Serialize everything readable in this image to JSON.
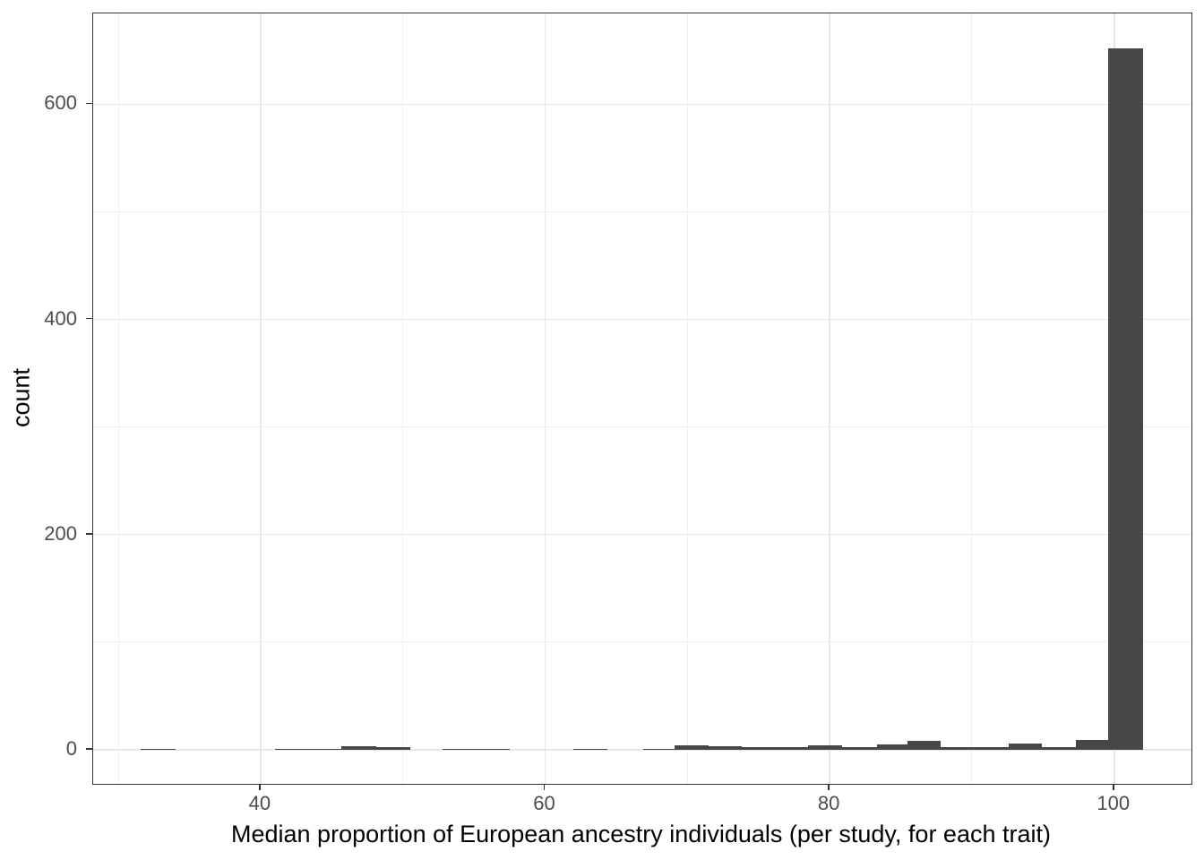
{
  "chart_data": {
    "type": "bar",
    "subtype": "histogram",
    "title": "",
    "xlabel": "Median proportion of European ancestry individuals (per study, for each trait)",
    "ylabel": "count",
    "x_domain": [
      28.2,
      105.4
    ],
    "y_domain": [
      -31.7,
      684.3
    ],
    "x_major_ticks": [
      40,
      60,
      80,
      100
    ],
    "x_minor_gridlines": [
      30,
      50,
      70,
      90
    ],
    "y_major_ticks": [
      0,
      200,
      400,
      600
    ],
    "y_minor_gridlines": [
      100,
      300,
      500
    ],
    "grid": "major+minor",
    "legend_position": "none",
    "bars": [
      {
        "x0": 31.6,
        "x1": 34.0,
        "count": 1
      },
      {
        "x0": 41.0,
        "x1": 43.4,
        "count": 1
      },
      {
        "x0": 43.4,
        "x1": 45.7,
        "count": 1
      },
      {
        "x0": 45.7,
        "x1": 48.1,
        "count": 3
      },
      {
        "x0": 48.1,
        "x1": 50.5,
        "count": 2
      },
      {
        "x0": 52.8,
        "x1": 55.2,
        "count": 1
      },
      {
        "x0": 55.2,
        "x1": 57.5,
        "count": 1
      },
      {
        "x0": 62.0,
        "x1": 64.4,
        "count": 1
      },
      {
        "x0": 66.9,
        "x1": 69.1,
        "count": 1
      },
      {
        "x0": 69.1,
        "x1": 71.5,
        "count": 4
      },
      {
        "x0": 71.5,
        "x1": 73.8,
        "count": 3
      },
      {
        "x0": 73.8,
        "x1": 76.2,
        "count": 2
      },
      {
        "x0": 76.2,
        "x1": 78.5,
        "count": 2
      },
      {
        "x0": 78.5,
        "x1": 80.9,
        "count": 4
      },
      {
        "x0": 80.9,
        "x1": 83.3,
        "count": 2
      },
      {
        "x0": 83.3,
        "x1": 85.5,
        "count": 5
      },
      {
        "x0": 85.5,
        "x1": 87.8,
        "count": 8
      },
      {
        "x0": 87.8,
        "x1": 90.2,
        "count": 2
      },
      {
        "x0": 90.2,
        "x1": 92.6,
        "count": 2
      },
      {
        "x0": 92.6,
        "x1": 94.9,
        "count": 6
      },
      {
        "x0": 94.9,
        "x1": 97.3,
        "count": 2
      },
      {
        "x0": 97.3,
        "x1": 99.6,
        "count": 9
      },
      {
        "x0": 99.6,
        "x1": 102.0,
        "count": 652
      }
    ],
    "colors": {
      "bar_fill": "#474747",
      "panel_border": "#333333",
      "grid_major": "#e8e8e8",
      "grid_minor": "#f0f0f0",
      "tick_mark": "#333333",
      "tick_label": "#4d4d4d",
      "axis_title": "#000000",
      "background": "#ffffff"
    }
  }
}
